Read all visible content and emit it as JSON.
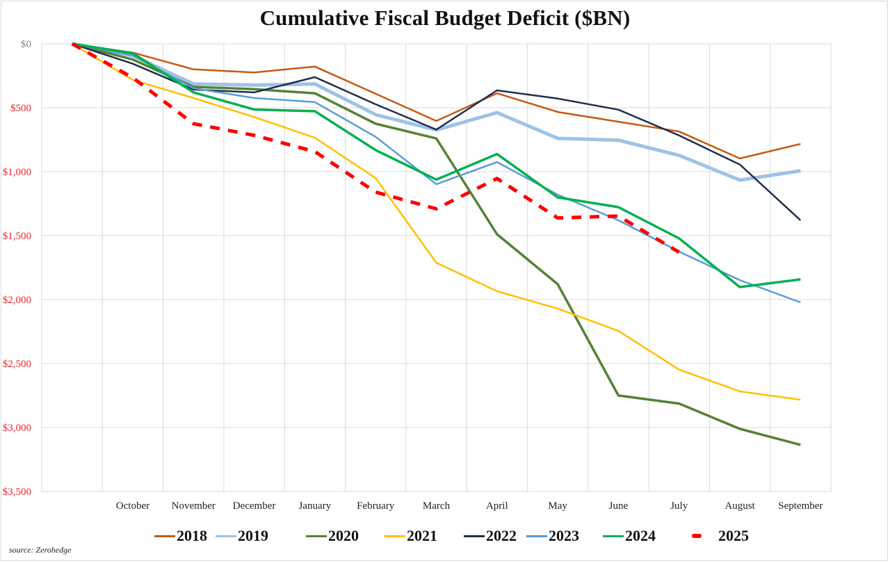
{
  "chart_data": {
    "type": "line",
    "title": "Cumulative Fiscal Budget Deficit ($BN)",
    "xlabel": "",
    "ylabel": "",
    "categories": [
      "",
      "October",
      "November",
      "December",
      "January",
      "February",
      "March",
      "April",
      "May",
      "June",
      "July",
      "August",
      "September"
    ],
    "y_axis": {
      "inverted": true,
      "ylim": [
        0,
        3500
      ],
      "ticks": [
        0,
        500,
        1000,
        1500,
        2000,
        2500,
        3000,
        3500
      ],
      "tick_labels": [
        "$0",
        "$500",
        "$1,000",
        "$1,500",
        "$2,000",
        "$2,500",
        "$3,000",
        "$3,500"
      ],
      "tick_colors": [
        "#7f7f7f",
        "#e8262a",
        "#e8262a",
        "#e8262a",
        "#e8262a",
        "#e8262a",
        "#e8262a",
        "#e8262a"
      ]
    },
    "grid": true,
    "legend_position": "bottom",
    "series": [
      {
        "name": "2018",
        "color": "#c55a11",
        "style": "solid",
        "values": [
          0,
          69,
          200,
          224,
          178,
          391,
          603,
          387,
          533,
          609,
          686,
          897,
          783
        ]
      },
      {
        "name": "2019",
        "color": "#9dc3e6",
        "style": "solid-thick",
        "values": [
          0,
          92,
          314,
          323,
          314,
          554,
          674,
          538,
          739,
          754,
          873,
          1066,
          993
        ]
      },
      {
        "name": "2020",
        "color": "#548235",
        "style": "solid-thick",
        "values": [
          0,
          123,
          337,
          355,
          387,
          625,
          740,
          1489,
          1880,
          2750,
          2813,
          3011,
          3136
        ]
      },
      {
        "name": "2021",
        "color": "#ffc000",
        "style": "solid",
        "values": [
          0,
          283,
          424,
          573,
          735,
          1050,
          1712,
          1935,
          2071,
          2245,
          2548,
          2718,
          2783
        ]
      },
      {
        "name": "2022",
        "color": "#1f2d4e",
        "style": "solid",
        "values": [
          0,
          156,
          358,
          380,
          261,
          473,
          671,
          364,
          428,
          515,
          717,
          944,
          1380
        ]
      },
      {
        "name": "2023",
        "color": "#5b9bd5",
        "style": "solid",
        "values": [
          0,
          92,
          348,
          424,
          456,
          727,
          1098,
          925,
          1180,
          1380,
          1625,
          1848,
          2022
        ]
      },
      {
        "name": "2024",
        "color": "#00b050",
        "style": "solid-thick",
        "values": [
          0,
          74,
          380,
          514,
          527,
          831,
          1062,
          862,
          1201,
          1277,
          1522,
          1902,
          1842
        ]
      },
      {
        "name": "2025",
        "color": "#ff0000",
        "style": "dashed",
        "values": [
          0,
          265,
          625,
          716,
          843,
          1160,
          1290,
          1053,
          1362,
          1347,
          1630,
          null,
          null
        ]
      }
    ]
  },
  "source": "source: Zerohedge"
}
